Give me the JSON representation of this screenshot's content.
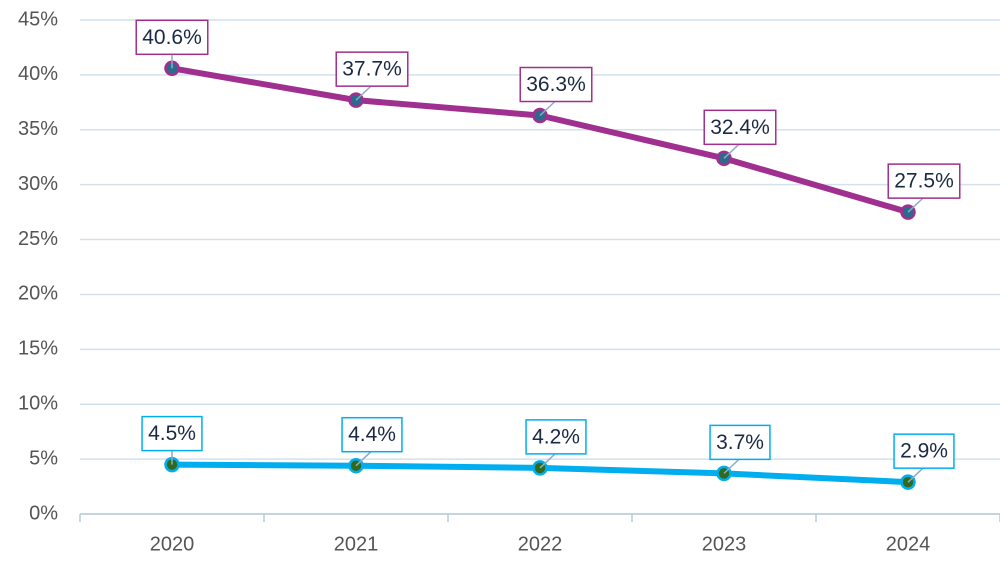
{
  "chart_data": {
    "type": "line",
    "categories": [
      "2020",
      "2021",
      "2022",
      "2023",
      "2024"
    ],
    "series": [
      {
        "color": "#a0308f",
        "marker_color": "#2c6a8c",
        "values": [
          40.6,
          37.7,
          36.3,
          32.4,
          27.5
        ],
        "value_labels": [
          "40.6%",
          "37.7%",
          "36.3%",
          "32.4%",
          "27.5%"
        ]
      },
      {
        "color": "#00aeef",
        "marker_color": "#2e6b1f",
        "values": [
          4.5,
          4.4,
          4.2,
          3.7,
          2.9
        ],
        "value_labels": [
          "4.5%",
          "4.4%",
          "4.2%",
          "3.7%",
          "2.9%"
        ]
      }
    ],
    "ylim": [
      0,
      45
    ],
    "yticks": [
      {
        "value": 0,
        "label": "0%"
      },
      {
        "value": 5,
        "label": "5%"
      },
      {
        "value": 10,
        "label": "10%"
      },
      {
        "value": 15,
        "label": "15%"
      },
      {
        "value": 20,
        "label": "20%"
      },
      {
        "value": 25,
        "label": "25%"
      },
      {
        "value": 30,
        "label": "30%"
      },
      {
        "value": 35,
        "label": "35%"
      },
      {
        "value": 40,
        "label": "40%"
      },
      {
        "value": 45,
        "label": "45%"
      }
    ],
    "grid": true
  }
}
